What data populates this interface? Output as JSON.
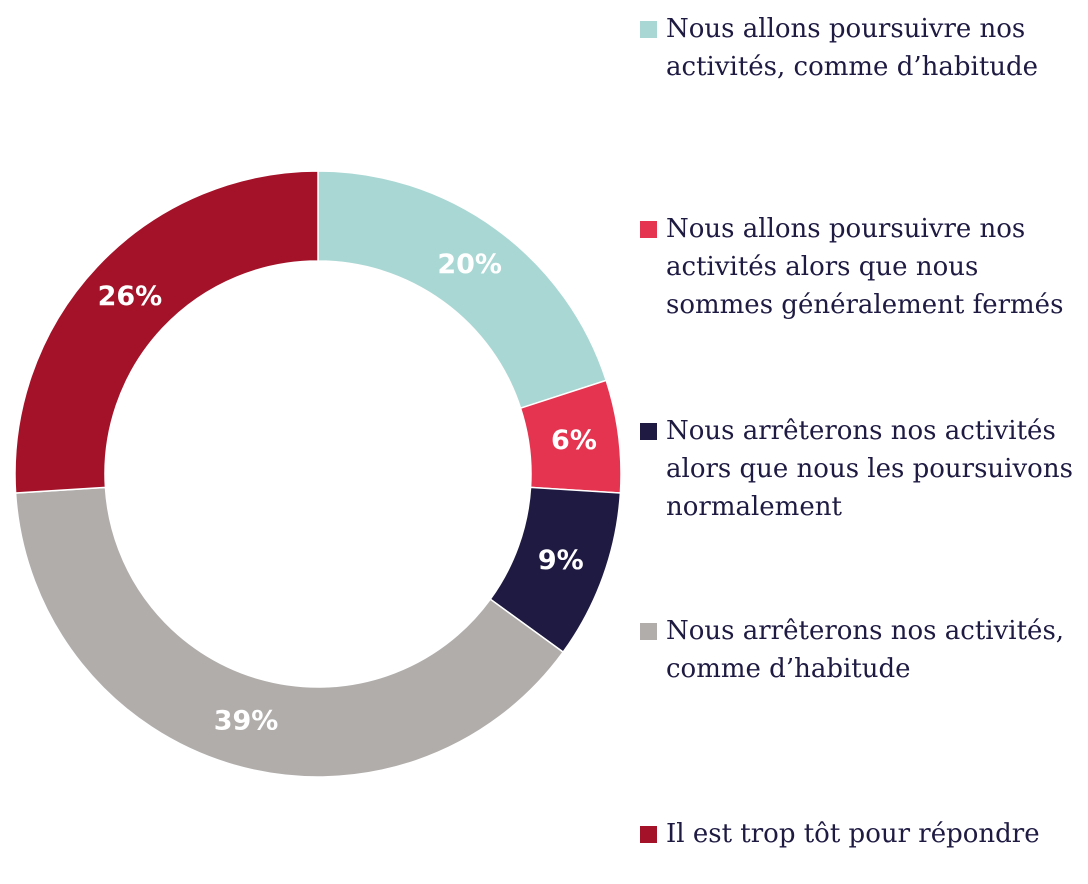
{
  "chart_data": {
    "type": "donut",
    "categories": [
      "Nous allons poursuivre nos activités, comme d’habitude",
      "Nous allons poursuivre nos activités alors que nous sommes généralement fermés",
      "Nous arrêterons nos activités alors que nous les poursuivons normalement",
      "Nous arrêterons nos activités, comme d’habitude",
      "Il est trop tôt pour répondre"
    ],
    "values": [
      20,
      6,
      9,
      39,
      26
    ],
    "value_labels": [
      "20%",
      "6%",
      "9%",
      "39%",
      "26%"
    ],
    "colors": [
      "#a9d7d3",
      "#e5344f",
      "#1e1a42",
      "#b0adab",
      "#a31228"
    ],
    "legend": "right"
  }
}
